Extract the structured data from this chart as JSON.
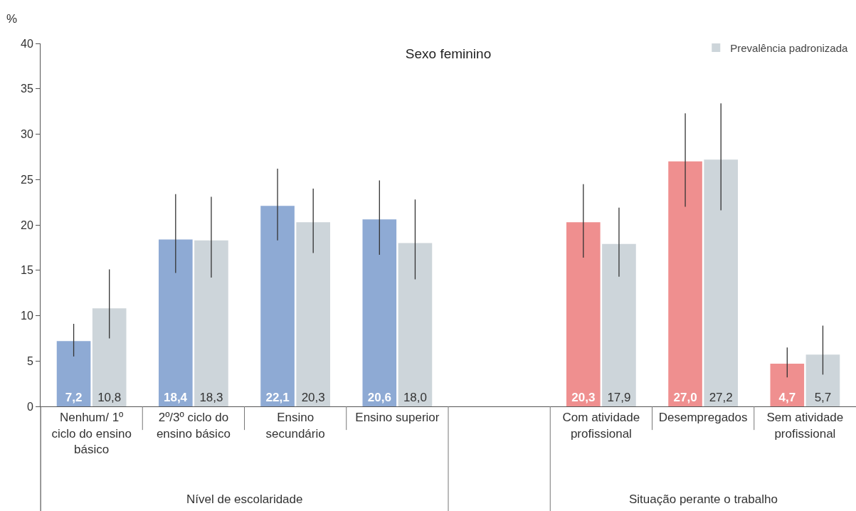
{
  "chart_data": {
    "type": "bar",
    "title": "Sexo feminino",
    "ylabel": "%",
    "categories": [
      "Nenhum/ 1º ciclo do ensino básico",
      "2º/3º ciclo do ensino básico",
      "Ensino secundário",
      "Ensino superior",
      null,
      "Com atividade profissional",
      "Desempregados",
      "Sem atividade profissional"
    ],
    "series": [
      {
        "colors": [
          "#8eaad4",
          "#8eaad4",
          "#8eaad4",
          "#8eaad4",
          "#8eaad4",
          "#ef8f8f",
          "#ef8f8f",
          "#ef8f8f"
        ],
        "values": [
          7.2,
          18.4,
          22.1,
          20.6,
          null,
          20.3,
          27.0,
          4.7
        ],
        "value_labels": [
          "7,2",
          "18,4",
          "22,1",
          "20,6",
          null,
          "20,3",
          "27,0",
          "4,7"
        ],
        "errors": [
          [
            5.5,
            9.1
          ],
          [
            14.7,
            23.4
          ],
          [
            18.3,
            26.2
          ],
          [
            16.7,
            24.9
          ],
          null,
          [
            16.4,
            24.5
          ],
          [
            22.0,
            32.3
          ],
          [
            3.2,
            6.5
          ]
        ]
      },
      {
        "name": "Prevalência padronizada",
        "color": "#cdd5da",
        "values": [
          10.8,
          18.3,
          20.3,
          18.0,
          null,
          17.9,
          27.2,
          5.7
        ],
        "value_labels": [
          "10,8",
          "18,3",
          "20,3",
          "18,0",
          null,
          "17,9",
          "27,2",
          "5,7"
        ],
        "errors": [
          [
            7.5,
            15.1
          ],
          [
            14.2,
            23.1
          ],
          [
            16.9,
            24.0
          ],
          [
            14.0,
            22.8
          ],
          null,
          [
            14.3,
            21.9
          ],
          [
            21.6,
            33.4
          ],
          [
            3.5,
            8.9
          ]
        ]
      }
    ],
    "annotations": [
      "Nível de escolaridade",
      "Situação perante o trabalho"
    ],
    "ylim": [
      0,
      40
    ],
    "yticks": [
      0,
      5,
      10,
      15,
      20,
      25,
      30,
      35,
      40
    ],
    "grid": false,
    "legend": "top right"
  }
}
